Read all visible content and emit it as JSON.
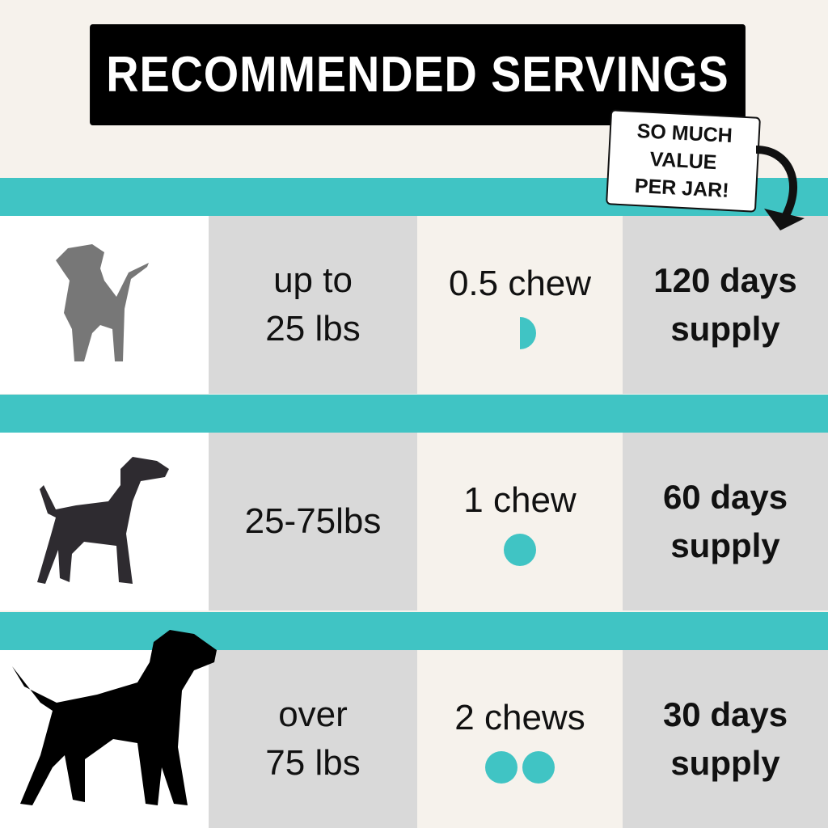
{
  "title": "RECOMMENDED SERVINGS",
  "sticker": {
    "line1": "SO MUCH",
    "line2": "VALUE",
    "line3": "PER JAR!"
  },
  "colors": {
    "accent": "#40c4c4",
    "background": "#f6f2ec",
    "cell_gray": "#d9d9d9",
    "title_bg": "#000000"
  },
  "rows": [
    {
      "dog_icon": "small-dog-icon",
      "weight": [
        "up to",
        "25 lbs"
      ],
      "dose": "0.5 chew",
      "chews": 0.5,
      "supply": [
        "120 days",
        "supply"
      ]
    },
    {
      "dog_icon": "medium-dog-icon",
      "weight": [
        "25-75lbs"
      ],
      "dose": "1 chew",
      "chews": 1,
      "supply": [
        "60 days",
        "supply"
      ]
    },
    {
      "dog_icon": "large-dog-icon",
      "weight": [
        "over",
        "75 lbs"
      ],
      "dose": "2 chews",
      "chews": 2,
      "supply": [
        "30 days",
        "supply"
      ]
    }
  ]
}
